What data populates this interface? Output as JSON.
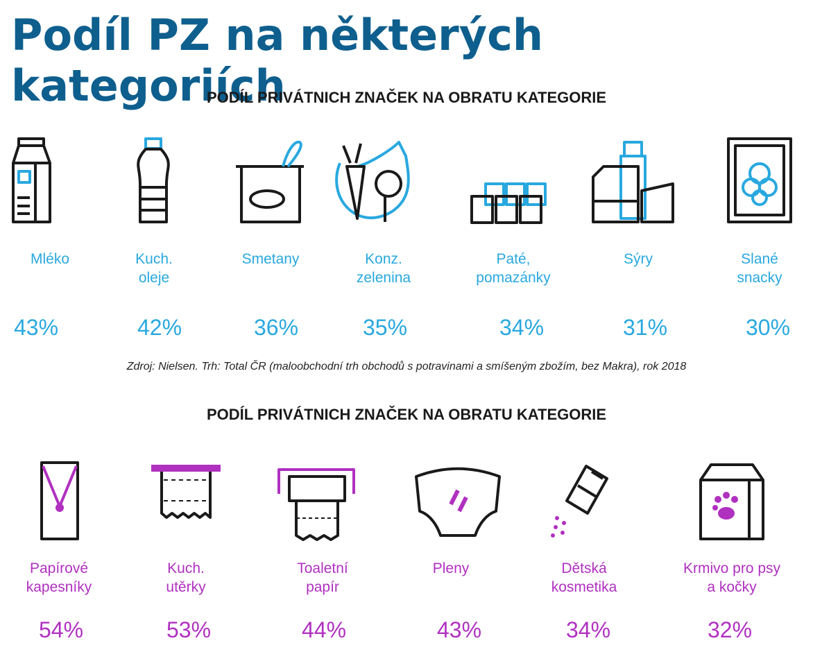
{
  "title": "Podíl PZ na některých kategoriích",
  "section1": {
    "heading": "PODÍL PRIVÁTNICH ZNAČEK NA OBRATU KATEGORIE",
    "items": [
      {
        "label1": "Mléko",
        "label2": "",
        "value": "43%"
      },
      {
        "label1": "Kuch.",
        "label2": "oleje",
        "value": "42%"
      },
      {
        "label1": "Smetany",
        "label2": "",
        "value": "36%"
      },
      {
        "label1": "Konz.",
        "label2": "zelenina",
        "value": "35%"
      },
      {
        "label1": "Paté,",
        "label2": "pomazánky",
        "value": "34%"
      },
      {
        "label1": "Sýry",
        "label2": "",
        "value": "31%"
      },
      {
        "label1": "Slané",
        "label2": "snacky",
        "value": "30%"
      }
    ]
  },
  "source": "Zdroj: Nielsen. Trh: Total ČR (maloobchodní trh obchodů s potravinami a smíšeným zbožím, bez Makra), rok 2018",
  "section2": {
    "heading": "PODÍL PRIVÁTNICH ZNAČEK NA OBRATU KATEGORIE",
    "items": [
      {
        "label1": "Papírové",
        "label2": "kapesníky",
        "value": "54%"
      },
      {
        "label1": "Kuch.",
        "label2": "utěrky",
        "value": "53%"
      },
      {
        "label1": "Toaletní",
        "label2": "papír",
        "value": "44%"
      },
      {
        "label1": "Pleny",
        "label2": "",
        "value": "43%"
      },
      {
        "label1": "Dětská",
        "label2": "kosmetika",
        "value": "34%"
      },
      {
        "label1": "Krmivo pro psy",
        "label2": "a kočky",
        "value": "32%"
      }
    ]
  },
  "colors": {
    "title": "#0e5f8e",
    "blue": "#29a8df",
    "purple": "#b030c0",
    "line": "#1a1a1a"
  }
}
